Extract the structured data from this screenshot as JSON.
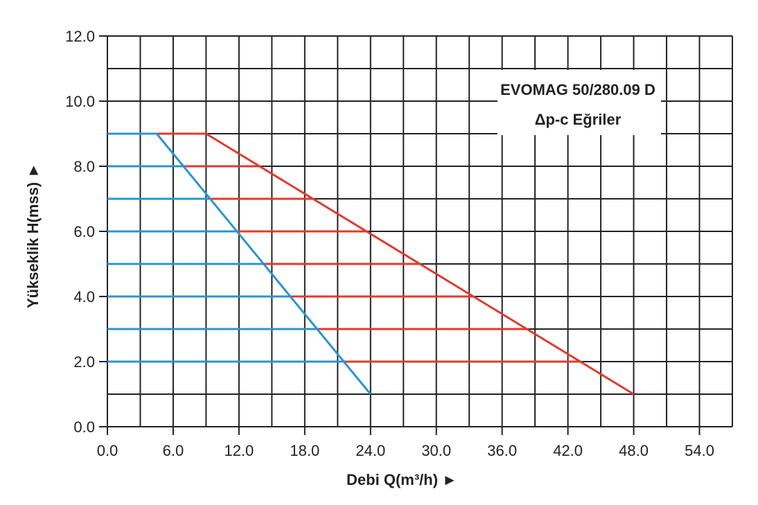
{
  "chart_data": {
    "type": "line",
    "title": "EVOMAG 50/280.09 D",
    "subtitle": "Δp-c Eğriler",
    "xlabel": "Debi Q(m³/h) ►",
    "ylabel": "Yükseklik H(mss) ►",
    "xlim": [
      0,
      57
    ],
    "ylim": [
      0,
      12
    ],
    "xticks": [
      "0.0",
      "6.0",
      "12.0",
      "18.0",
      "24.0",
      "30.0",
      "36.0",
      "42.0",
      "48.0",
      "54.0"
    ],
    "yticks": [
      "0.0",
      "2.0",
      "4.0",
      "6.0",
      "8.0",
      "10.0",
      "12.0"
    ],
    "grid": true,
    "legend": "none",
    "colors": {
      "min_curve": "#2a94cf",
      "max_curve": "#e03a2e",
      "grid": "#222222"
    },
    "min_curve": {
      "x": [
        4.5,
        24
      ],
      "y": [
        9,
        1
      ]
    },
    "max_curve": {
      "x": [
        9,
        48
      ],
      "y": [
        9,
        1
      ]
    },
    "setpoints": [
      9,
      8,
      7,
      6,
      5,
      4,
      3,
      2
    ]
  }
}
